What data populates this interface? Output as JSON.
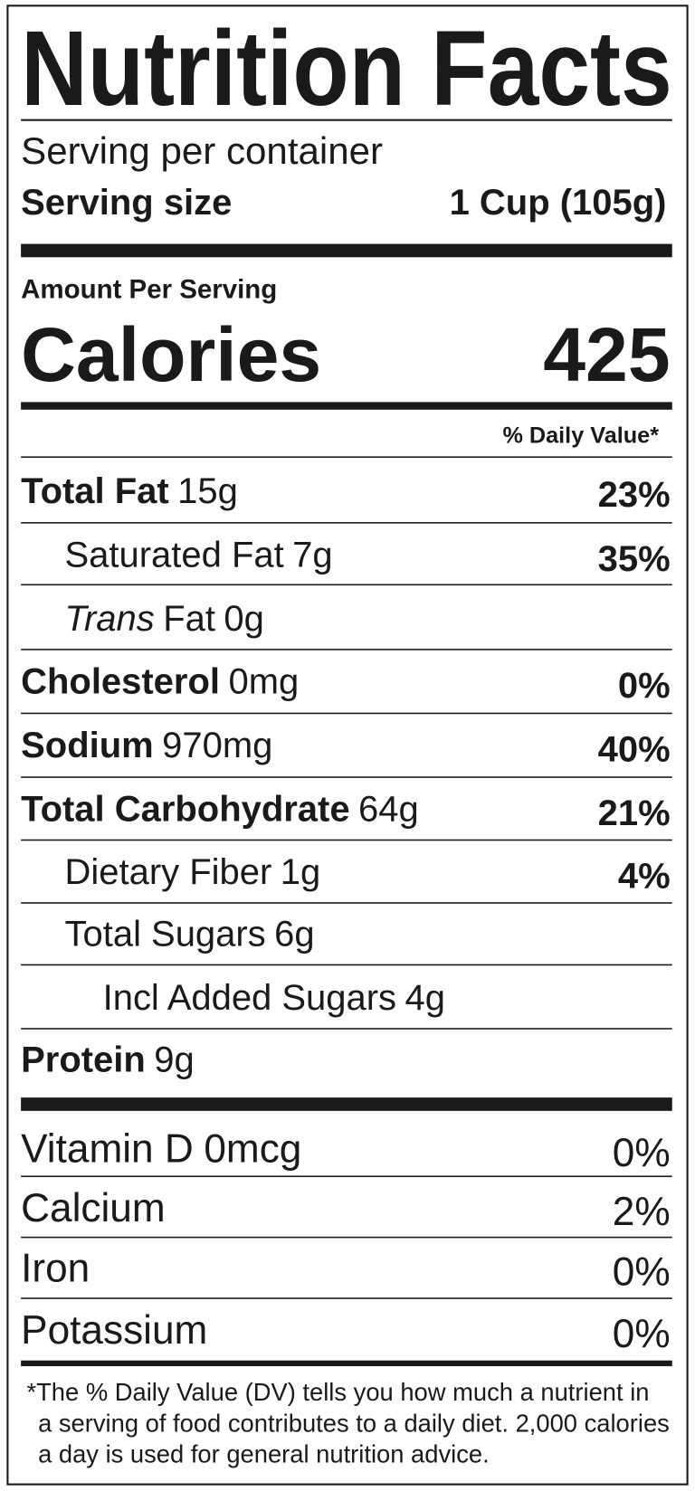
{
  "title": "Nutrition Facts",
  "serving_per_container": "Serving per container",
  "serving_size": {
    "label": "Serving size",
    "value": "1 Cup (105g)"
  },
  "amount_per_serving": "Amount Per Serving",
  "calories": {
    "label": "Calories",
    "value": "425"
  },
  "daily_value_header": "% Daily Value*",
  "nutrients": [
    {
      "label": "Total Fat",
      "amount": "15g",
      "dv": "23%"
    },
    {
      "label": "Saturated Fat",
      "amount": "7g",
      "dv": "35%"
    },
    {
      "label_italic": "Trans",
      "label": "Fat",
      "amount": "0g"
    },
    {
      "label": "Cholesterol",
      "amount": "0mg",
      "dv": "0%"
    },
    {
      "label": "Sodium",
      "amount": "970mg",
      "dv": "40%"
    },
    {
      "label": "Total Carbohydrate",
      "amount": "64g",
      "dv": "21%"
    },
    {
      "label": "Dietary Fiber",
      "amount": "1g",
      "dv": "4%"
    },
    {
      "label": "Total Sugars",
      "amount": "6g"
    },
    {
      "label": "Incl Added Sugars",
      "amount": "4g"
    },
    {
      "label": "Protein",
      "amount": "9g"
    }
  ],
  "vitamins": [
    {
      "label": "Vitamin D",
      "amount": "0mcg",
      "dv": "0%"
    },
    {
      "label": "Calcium",
      "dv": "2%"
    },
    {
      "label": "Iron",
      "dv": "0%"
    },
    {
      "label": "Potassium",
      "dv": "0%"
    }
  ],
  "footnote": [
    "*The % Daily Value (DV) tells you how much a nutrient in",
    "a serving of food contributes to a daily diet. 2,000 calories",
    "a day is used for general nutrition advice."
  ]
}
